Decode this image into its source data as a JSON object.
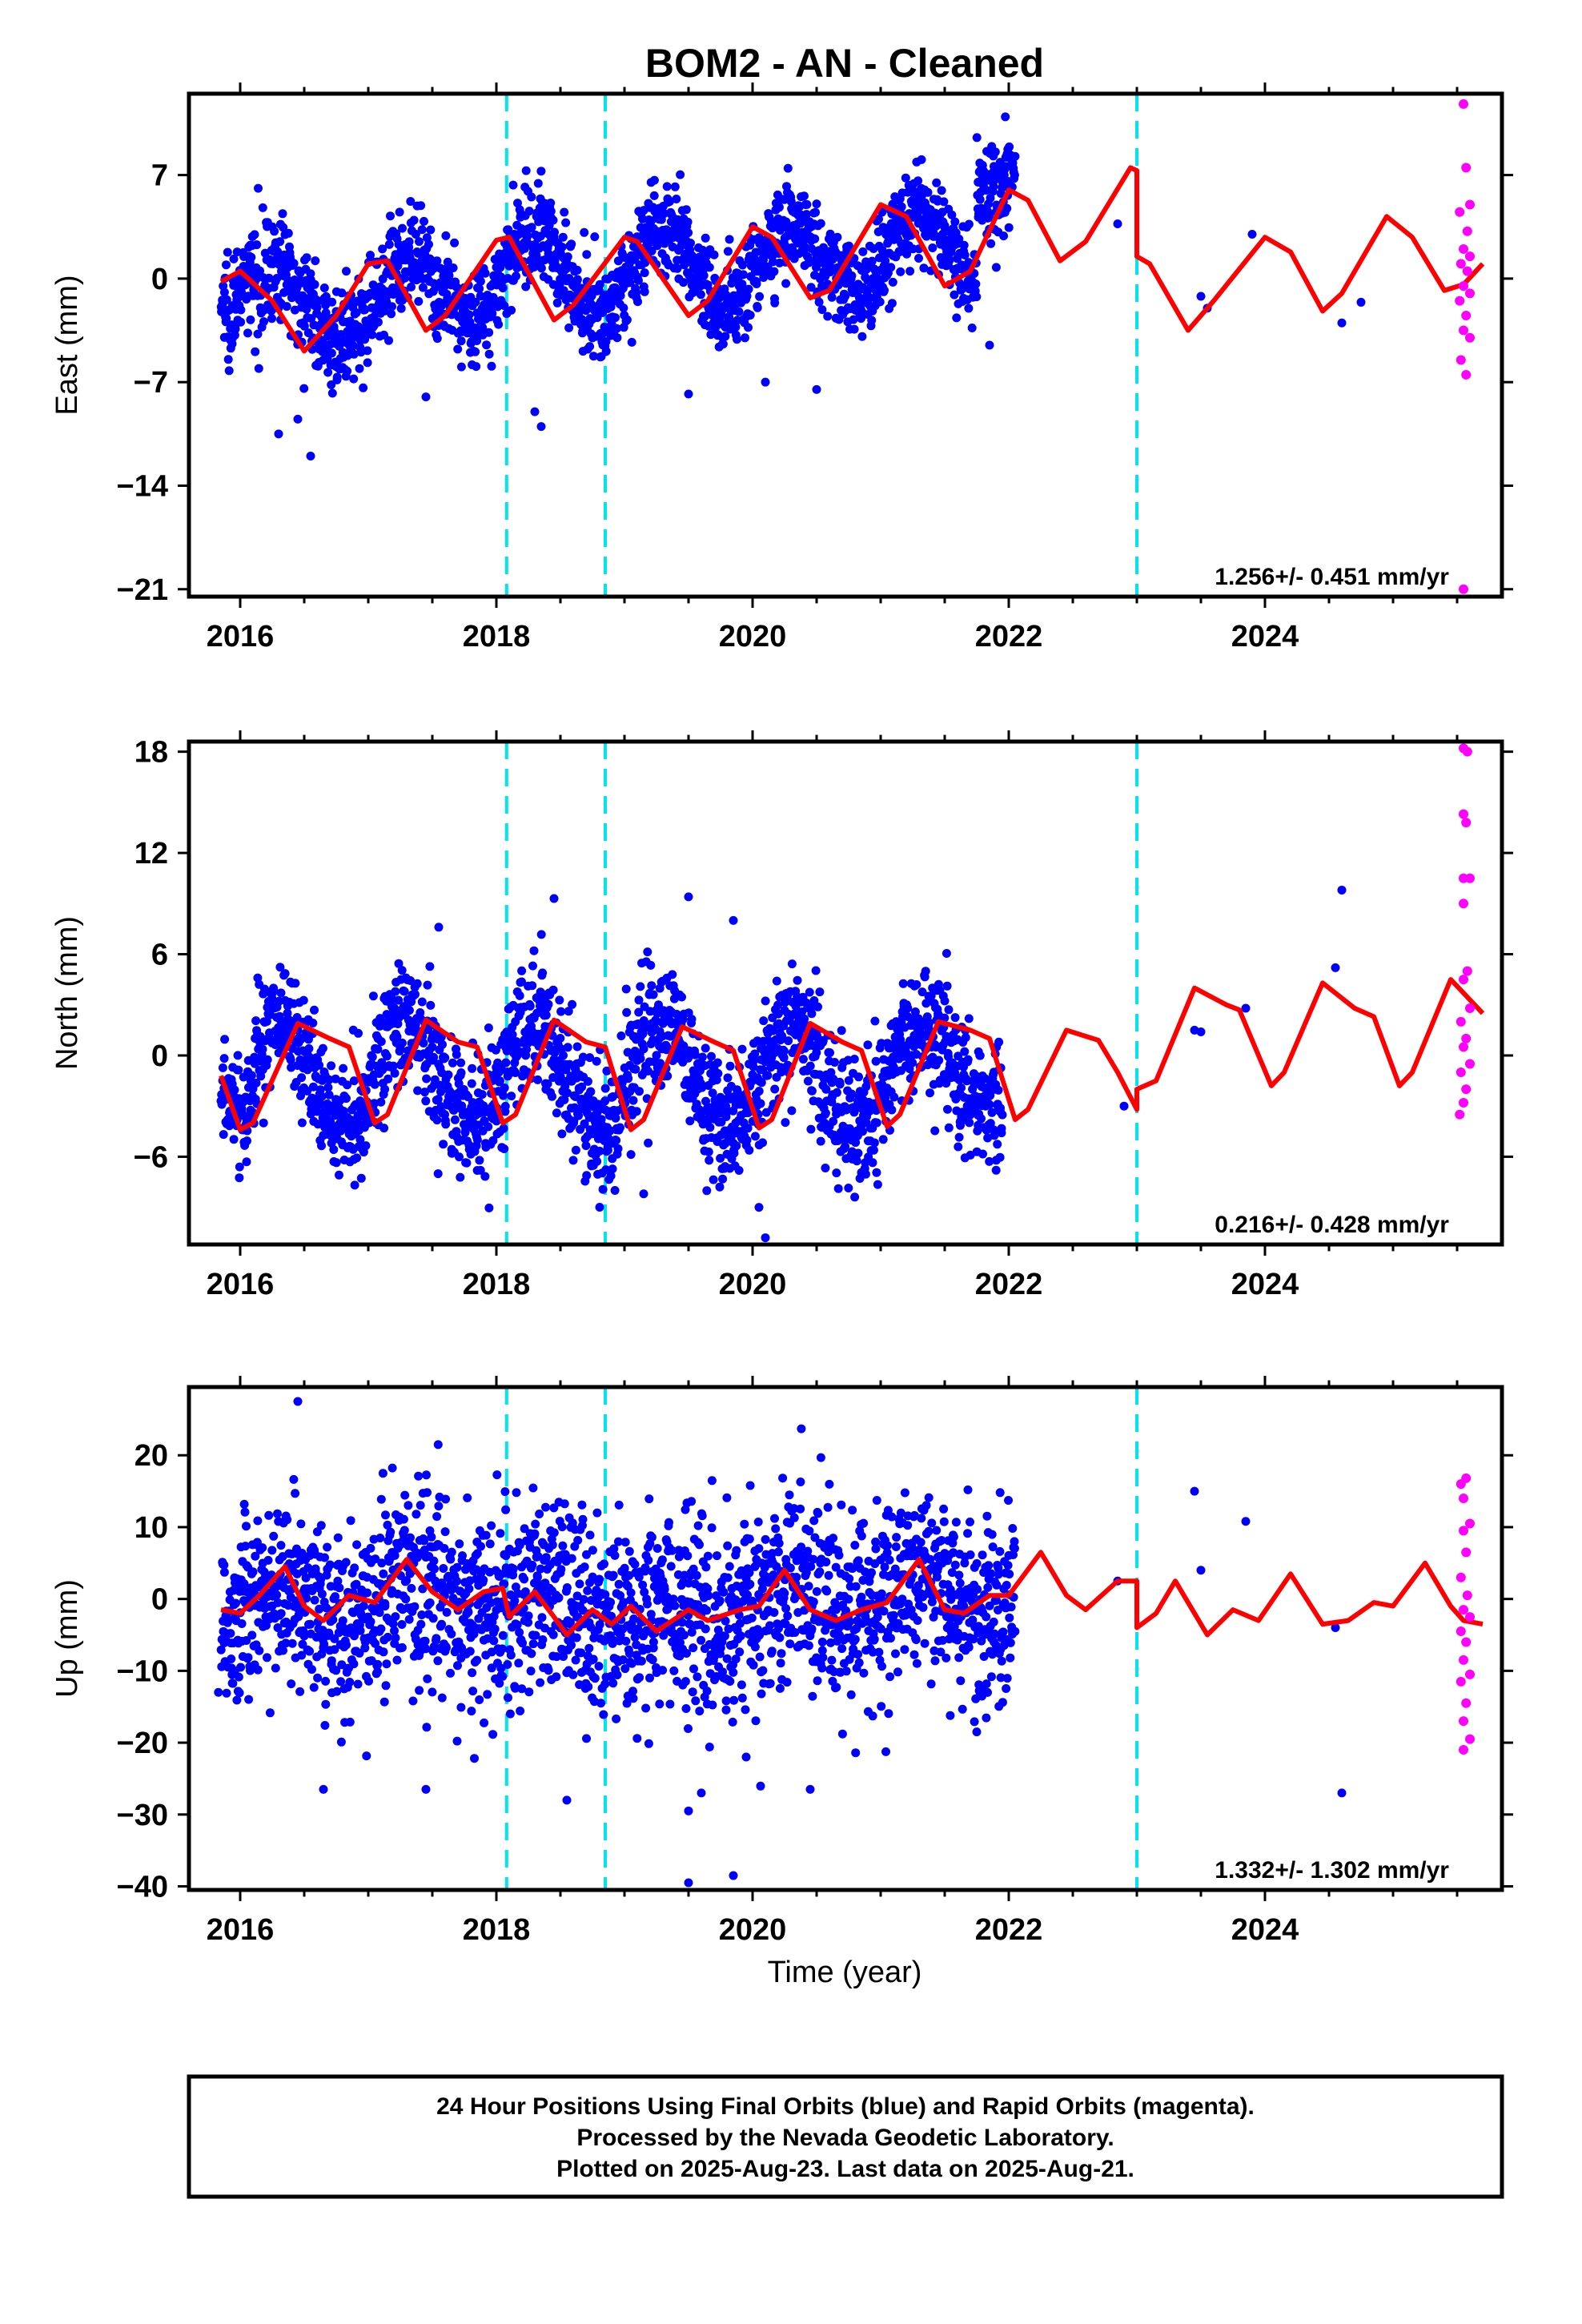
{
  "title": "BOM2  - AN - Cleaned",
  "xlabel": "Time (year)",
  "footer": {
    "line1": "24 Hour Positions Using Final Orbits (blue) and Rapid Orbits (magenta).",
    "line2": "Processed by the Nevada Geodetic Laboratory.",
    "line3": "Plotted on 2025-Aug-23. Last data on 2025-Aug-21."
  },
  "colors": {
    "final_orbits": "#0000ff",
    "rapid_orbits": "#ff00ff",
    "model": "#ff0000",
    "steps": "#00e5ee"
  },
  "chart_data": [
    {
      "type": "scatter",
      "component": "East",
      "ylabel": "East (mm)",
      "rate": "1.256+/- 0.451 mm/yr",
      "xlim": [
        2015.6,
        2025.85
      ],
      "ylim": [
        -21.5,
        12.5
      ],
      "xticks": [
        2016,
        2018,
        2020,
        2022,
        2024
      ],
      "yticks": [
        7,
        0,
        -7,
        -14,
        -21
      ],
      "step_lines": [
        2018.08,
        2018.85,
        2023.0
      ],
      "model": [
        [
          2015.85,
          -0.2
        ],
        [
          2016.0,
          0.5
        ],
        [
          2016.25,
          -1.5
        ],
        [
          2016.5,
          -4.9
        ],
        [
          2016.75,
          -2.5
        ],
        [
          2017.0,
          1.0
        ],
        [
          2017.15,
          1.2
        ],
        [
          2017.45,
          -3.5
        ],
        [
          2017.6,
          -2.5
        ],
        [
          2018.0,
          2.6
        ],
        [
          2018.1,
          2.8
        ],
        [
          2018.45,
          -2.8
        ],
        [
          2018.6,
          -1.8
        ],
        [
          2019.0,
          2.8
        ],
        [
          2019.1,
          2.5
        ],
        [
          2019.5,
          -2.5
        ],
        [
          2019.65,
          -1.5
        ],
        [
          2020.0,
          3.5
        ],
        [
          2020.15,
          2.8
        ],
        [
          2020.45,
          -1.3
        ],
        [
          2020.6,
          -0.8
        ],
        [
          2021.0,
          5.0
        ],
        [
          2021.2,
          4.2
        ],
        [
          2021.5,
          -0.5
        ],
        [
          2021.7,
          0.5
        ],
        [
          2022.0,
          6.0
        ],
        [
          2022.15,
          5.3
        ],
        [
          2022.4,
          1.2
        ],
        [
          2022.6,
          2.5
        ],
        [
          2022.95,
          7.5
        ],
        [
          2023.0,
          7.3
        ],
        [
          2023.0,
          1.5
        ],
        [
          2023.1,
          1.0
        ],
        [
          2023.4,
          -3.5
        ],
        [
          2023.6,
          -1.5
        ],
        [
          2024.0,
          2.8
        ],
        [
          2024.2,
          1.8
        ],
        [
          2024.45,
          -2.2
        ],
        [
          2024.6,
          -1.0
        ],
        [
          2024.95,
          4.2
        ],
        [
          2025.15,
          2.8
        ],
        [
          2025.4,
          -0.8
        ],
        [
          2025.55,
          -0.4
        ],
        [
          2025.7,
          1.0
        ]
      ],
      "final_trend": [
        {
          "x0": 2015.85,
          "x1": 2016.5,
          "a": 0.0,
          "b": -2.0,
          "amp": 2.0,
          "s": 1.8
        },
        {
          "x0": 2016.5,
          "x1": 2017.6,
          "a": -2.0,
          "b": -1.0,
          "amp": 2.6,
          "s": 1.6
        },
        {
          "x0": 2017.6,
          "x1": 2018.6,
          "a": 0.0,
          "b": 0.5,
          "amp": 2.8,
          "s": 1.6
        },
        {
          "x0": 2018.6,
          "x1": 2019.6,
          "a": 0.5,
          "b": 0.5,
          "amp": 2.8,
          "s": 1.6
        },
        {
          "x0": 2019.6,
          "x1": 2020.6,
          "a": 0.5,
          "b": 1.5,
          "amp": 2.4,
          "s": 1.6
        },
        {
          "x0": 2020.6,
          "x1": 2021.75,
          "a": 1.5,
          "b": 2.0,
          "amp": 2.5,
          "s": 1.6
        },
        {
          "x0": 2021.75,
          "x1": 2022.05,
          "a": 6.0,
          "b": 7.0,
          "amp": 0.5,
          "s": 1.8
        }
      ],
      "final_outliers": [
        [
          2016.3,
          -10.5
        ],
        [
          2016.55,
          -12.0
        ],
        [
          2016.45,
          -9.5
        ],
        [
          2017.45,
          -8.0
        ],
        [
          2018.3,
          -9.0
        ],
        [
          2018.35,
          -10.0
        ],
        [
          2019.5,
          -7.8
        ],
        [
          2020.1,
          -7.0
        ],
        [
          2020.5,
          -7.5
        ],
        [
          2021.85,
          -4.5
        ],
        [
          2023.5,
          -1.2
        ],
        [
          2023.55,
          -2.0
        ],
        [
          2023.9,
          3.0
        ],
        [
          2024.6,
          -3.0
        ],
        [
          2024.75,
          -1.6
        ],
        [
          2022.85,
          3.7
        ]
      ],
      "rapid": [
        [
          2025.55,
          11.8
        ],
        [
          2025.57,
          7.5
        ],
        [
          2025.6,
          5.0
        ],
        [
          2025.52,
          4.5
        ],
        [
          2025.58,
          3.2
        ],
        [
          2025.55,
          2.0
        ],
        [
          2025.6,
          1.5
        ],
        [
          2025.53,
          1.0
        ],
        [
          2025.58,
          0.5
        ],
        [
          2025.55,
          -0.5
        ],
        [
          2025.6,
          -1.0
        ],
        [
          2025.52,
          -1.5
        ],
        [
          2025.57,
          -2.5
        ],
        [
          2025.55,
          -3.5
        ],
        [
          2025.6,
          -4.0
        ],
        [
          2025.53,
          -5.5
        ],
        [
          2025.57,
          -6.5
        ],
        [
          2025.55,
          -21.0
        ]
      ]
    },
    {
      "type": "scatter",
      "component": "North",
      "ylabel": "North (mm)",
      "rate": "0.216+/- 0.428 mm/yr",
      "xlim": [
        2015.6,
        2025.85
      ],
      "ylim": [
        -11.2,
        18.6
      ],
      "xticks": [
        2016,
        2018,
        2020,
        2022,
        2024
      ],
      "yticks": [
        18,
        12,
        6,
        0,
        -6
      ],
      "step_lines": [
        2018.08,
        2018.85,
        2023.0
      ],
      "model": [
        [
          2015.85,
          -1.2
        ],
        [
          2016.0,
          -4.4
        ],
        [
          2016.1,
          -4.0
        ],
        [
          2016.45,
          1.9
        ],
        [
          2016.7,
          1.0
        ],
        [
          2016.85,
          0.5
        ],
        [
          2017.05,
          -4.0
        ],
        [
          2017.15,
          -3.5
        ],
        [
          2017.45,
          2.1
        ],
        [
          2017.7,
          0.8
        ],
        [
          2017.85,
          0.5
        ],
        [
          2018.05,
          -4.0
        ],
        [
          2018.15,
          -3.5
        ],
        [
          2018.45,
          2.1
        ],
        [
          2018.7,
          0.8
        ],
        [
          2018.85,
          0.5
        ],
        [
          2019.05,
          -4.4
        ],
        [
          2019.15,
          -3.8
        ],
        [
          2019.45,
          1.7
        ],
        [
          2019.7,
          0.8
        ],
        [
          2019.85,
          0.3
        ],
        [
          2020.05,
          -4.3
        ],
        [
          2020.15,
          -3.8
        ],
        [
          2020.45,
          1.9
        ],
        [
          2020.7,
          0.8
        ],
        [
          2020.85,
          0.3
        ],
        [
          2021.05,
          -4.2
        ],
        [
          2021.15,
          -3.5
        ],
        [
          2021.45,
          2.0
        ],
        [
          2021.7,
          1.5
        ],
        [
          2021.85,
          1.0
        ],
        [
          2022.05,
          -3.8
        ],
        [
          2022.15,
          -3.2
        ],
        [
          2022.45,
          1.5
        ],
        [
          2022.7,
          0.9
        ],
        [
          2022.85,
          -1.0
        ],
        [
          2023.0,
          -3.2
        ],
        [
          2023.0,
          -2.0
        ],
        [
          2023.15,
          -1.5
        ],
        [
          2023.45,
          4.0
        ],
        [
          2023.7,
          3.0
        ],
        [
          2023.8,
          2.7
        ],
        [
          2024.05,
          -1.8
        ],
        [
          2024.15,
          -1.0
        ],
        [
          2024.45,
          4.3
        ],
        [
          2024.7,
          2.8
        ],
        [
          2024.85,
          2.3
        ],
        [
          2025.05,
          -1.8
        ],
        [
          2025.15,
          -1.0
        ],
        [
          2025.45,
          4.5
        ],
        [
          2025.6,
          3.3
        ],
        [
          2025.7,
          2.5
        ]
      ],
      "final_trend": [
        {
          "x0": 2015.85,
          "x1": 2016.1,
          "a": -2.0,
          "b": -3.5,
          "amp": 0.5,
          "s": 1.4
        },
        {
          "x0": 2016.1,
          "x1": 2017.1,
          "a": -1.0,
          "b": -1.0,
          "amp": 3.0,
          "s": 1.9
        },
        {
          "x0": 2017.1,
          "x1": 2018.1,
          "a": -1.0,
          "b": -1.2,
          "amp": 3.0,
          "s": 1.9
        },
        {
          "x0": 2018.1,
          "x1": 2019.1,
          "a": -1.2,
          "b": -1.2,
          "amp": 3.1,
          "s": 2.0
        },
        {
          "x0": 2019.1,
          "x1": 2020.1,
          "a": -1.2,
          "b": -1.3,
          "amp": 3.0,
          "s": 1.9
        },
        {
          "x0": 2020.1,
          "x1": 2021.1,
          "a": -1.3,
          "b": -1.2,
          "amp": 3.0,
          "s": 1.9
        },
        {
          "x0": 2021.1,
          "x1": 2021.95,
          "a": -1.2,
          "b": 0.0,
          "amp": 2.6,
          "s": 1.8
        }
      ],
      "final_outliers": [
        [
          2016.05,
          -6.3
        ],
        [
          2017.55,
          7.6
        ],
        [
          2018.45,
          9.3
        ],
        [
          2019.5,
          9.4
        ],
        [
          2019.85,
          8.0
        ],
        [
          2020.05,
          -9.0
        ],
        [
          2020.1,
          -10.8
        ],
        [
          2019.15,
          -8.2
        ],
        [
          2022.9,
          -3.0
        ],
        [
          2023.45,
          1.5
        ],
        [
          2023.5,
          1.4
        ],
        [
          2023.85,
          2.8
        ],
        [
          2024.55,
          5.2
        ],
        [
          2024.6,
          9.8
        ]
      ],
      "rapid": [
        [
          2025.55,
          18.2
        ],
        [
          2025.58,
          18.0
        ],
        [
          2025.55,
          14.3
        ],
        [
          2025.57,
          13.8
        ],
        [
          2025.55,
          10.5
        ],
        [
          2025.6,
          10.5
        ],
        [
          2025.55,
          9.0
        ],
        [
          2025.58,
          5.0
        ],
        [
          2025.55,
          4.5
        ],
        [
          2025.6,
          2.8
        ],
        [
          2025.53,
          2.0
        ],
        [
          2025.57,
          1.0
        ],
        [
          2025.55,
          0.5
        ],
        [
          2025.6,
          -0.5
        ],
        [
          2025.53,
          -1.0
        ],
        [
          2025.57,
          -2.0
        ],
        [
          2025.55,
          -2.8
        ],
        [
          2025.52,
          -3.5
        ]
      ]
    },
    {
      "type": "scatter",
      "component": "Up",
      "ylabel": "Up (mm)",
      "rate": "1.332+/- 1.302 mm/yr",
      "xlim": [
        2015.6,
        2025.85
      ],
      "ylim": [
        -40.5,
        29.5
      ],
      "xticks": [
        2016,
        2018,
        2020,
        2022,
        2024
      ],
      "yticks": [
        20,
        10,
        0,
        -10,
        -20,
        -30,
        -40
      ],
      "step_lines": [
        2018.08,
        2018.85,
        2023.0
      ],
      "model": [
        [
          2015.85,
          -1.5
        ],
        [
          2016.0,
          -2.0
        ],
        [
          2016.15,
          0.5
        ],
        [
          2016.35,
          4.5
        ],
        [
          2016.5,
          -1.0
        ],
        [
          2016.65,
          -3.0
        ],
        [
          2016.85,
          0.5
        ],
        [
          2017.05,
          -0.5
        ],
        [
          2017.3,
          5.5
        ],
        [
          2017.5,
          1.0
        ],
        [
          2017.7,
          -1.5
        ],
        [
          2017.9,
          1.0
        ],
        [
          2018.05,
          1.5
        ],
        [
          2018.1,
          -2.5
        ],
        [
          2018.3,
          1.0
        ],
        [
          2018.45,
          -2.5
        ],
        [
          2018.55,
          -5.0
        ],
        [
          2018.75,
          -1.5
        ],
        [
          2018.9,
          -3.5
        ],
        [
          2019.05,
          -1.0
        ],
        [
          2019.25,
          -4.5
        ],
        [
          2019.5,
          -1.5
        ],
        [
          2019.65,
          -3.0
        ],
        [
          2019.9,
          -1.5
        ],
        [
          2020.05,
          -1.0
        ],
        [
          2020.25,
          4.0
        ],
        [
          2020.45,
          -1.5
        ],
        [
          2020.65,
          -3.0
        ],
        [
          2020.85,
          -1.5
        ],
        [
          2021.05,
          -0.5
        ],
        [
          2021.3,
          5.5
        ],
        [
          2021.5,
          -1.5
        ],
        [
          2021.65,
          -2.0
        ],
        [
          2021.85,
          0.5
        ],
        [
          2022.0,
          0.5
        ],
        [
          2022.25,
          6.5
        ],
        [
          2022.45,
          0.5
        ],
        [
          2022.6,
          -1.5
        ],
        [
          2022.85,
          2.5
        ],
        [
          2023.0,
          2.5
        ],
        [
          2023.0,
          -4.0
        ],
        [
          2023.15,
          -2.0
        ],
        [
          2023.3,
          2.5
        ],
        [
          2023.55,
          -5.0
        ],
        [
          2023.75,
          -1.5
        ],
        [
          2023.95,
          -3.0
        ],
        [
          2024.2,
          3.5
        ],
        [
          2024.45,
          -3.5
        ],
        [
          2024.65,
          -3.0
        ],
        [
          2024.85,
          -0.5
        ],
        [
          2025.0,
          -1.0
        ],
        [
          2025.25,
          5.0
        ],
        [
          2025.45,
          -1.0
        ],
        [
          2025.55,
          -3.0
        ],
        [
          2025.7,
          -3.5
        ]
      ],
      "final_trend": [
        {
          "x0": 2015.85,
          "x1": 2017.0,
          "a": -1.0,
          "b": -1.0,
          "amp": 2.5,
          "s": 6.0
        },
        {
          "x0": 2017.0,
          "x1": 2018.1,
          "a": 1.0,
          "b": 0.0,
          "amp": 2.5,
          "s": 7.0
        },
        {
          "x0": 2018.1,
          "x1": 2019.1,
          "a": -1.0,
          "b": -2.0,
          "amp": 2.0,
          "s": 7.0
        },
        {
          "x0": 2019.1,
          "x1": 2020.1,
          "a": -2.0,
          "b": -1.0,
          "amp": 2.0,
          "s": 7.0
        },
        {
          "x0": 2020.1,
          "x1": 2021.1,
          "a": -1.0,
          "b": 0.0,
          "amp": 2.5,
          "s": 7.0
        },
        {
          "x0": 2021.1,
          "x1": 2022.05,
          "a": 0.0,
          "b": 0.5,
          "amp": 3.0,
          "s": 6.0
        }
      ],
      "final_outliers": [
        [
          2015.83,
          -13.0
        ],
        [
          2016.45,
          27.5
        ],
        [
          2016.65,
          -26.5
        ],
        [
          2017.45,
          -26.5
        ],
        [
          2018.55,
          -28.0
        ],
        [
          2019.5,
          -29.5
        ],
        [
          2019.5,
          -39.5
        ],
        [
          2019.85,
          -38.5
        ],
        [
          2019.6,
          -27.0
        ],
        [
          2019.95,
          -22.0
        ],
        [
          2020.45,
          -26.5
        ],
        [
          2021.75,
          -18.5
        ],
        [
          2022.85,
          2.5
        ],
        [
          2023.45,
          15.0
        ],
        [
          2023.5,
          4.0
        ],
        [
          2023.85,
          10.8
        ],
        [
          2024.6,
          -27.0
        ],
        [
          2024.55,
          -4.0
        ]
      ],
      "rapid": [
        [
          2025.57,
          16.8
        ],
        [
          2025.53,
          16.0
        ],
        [
          2025.55,
          14.0
        ],
        [
          2025.6,
          10.5
        ],
        [
          2025.55,
          9.5
        ],
        [
          2025.57,
          6.5
        ],
        [
          2025.53,
          3.0
        ],
        [
          2025.58,
          0.5
        ],
        [
          2025.55,
          -1.5
        ],
        [
          2025.6,
          -2.5
        ],
        [
          2025.53,
          -4.5
        ],
        [
          2025.57,
          -6.0
        ],
        [
          2025.55,
          -8.5
        ],
        [
          2025.6,
          -10.5
        ],
        [
          2025.53,
          -11.5
        ],
        [
          2025.57,
          -14.5
        ],
        [
          2025.55,
          -17.0
        ],
        [
          2025.6,
          -19.5
        ],
        [
          2025.55,
          -21.0
        ]
      ]
    }
  ]
}
